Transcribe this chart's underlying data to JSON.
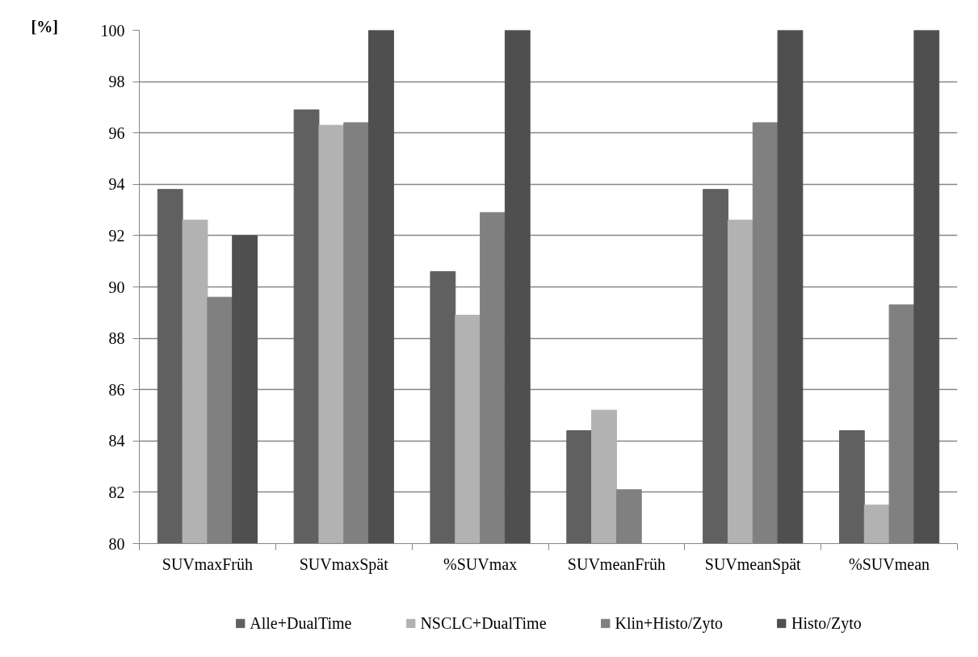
{
  "chart_data": {
    "type": "bar",
    "ylabel": "[%]",
    "categories": [
      "SUVmaxFrüh",
      "SUVmaxSpät",
      "%SUVmax",
      "SUVmeanFrüh",
      "SUVmeanSpät",
      "%SUVmean"
    ],
    "series": [
      {
        "name": "Alle+DualTime",
        "color": "#606060",
        "values": [
          93.8,
          96.9,
          90.6,
          84.4,
          93.8,
          84.4
        ]
      },
      {
        "name": "NSCLC+DualTime",
        "color": "#b2b2b2",
        "values": [
          92.6,
          96.3,
          88.9,
          85.2,
          92.6,
          81.5
        ]
      },
      {
        "name": "Klin+Histo/Zyto",
        "color": "#808080",
        "values": [
          89.6,
          96.4,
          92.9,
          82.1,
          96.4,
          89.3
        ]
      },
      {
        "name": "Histo/Zyto",
        "color": "#4f4f4f",
        "values": [
          92.0,
          100,
          100,
          80,
          100,
          100
        ]
      }
    ],
    "ylim": [
      80,
      100
    ],
    "yticks": [
      80,
      82,
      84,
      86,
      88,
      90,
      92,
      94,
      96,
      98,
      100
    ],
    "grid": "y",
    "legend": "bottom"
  }
}
